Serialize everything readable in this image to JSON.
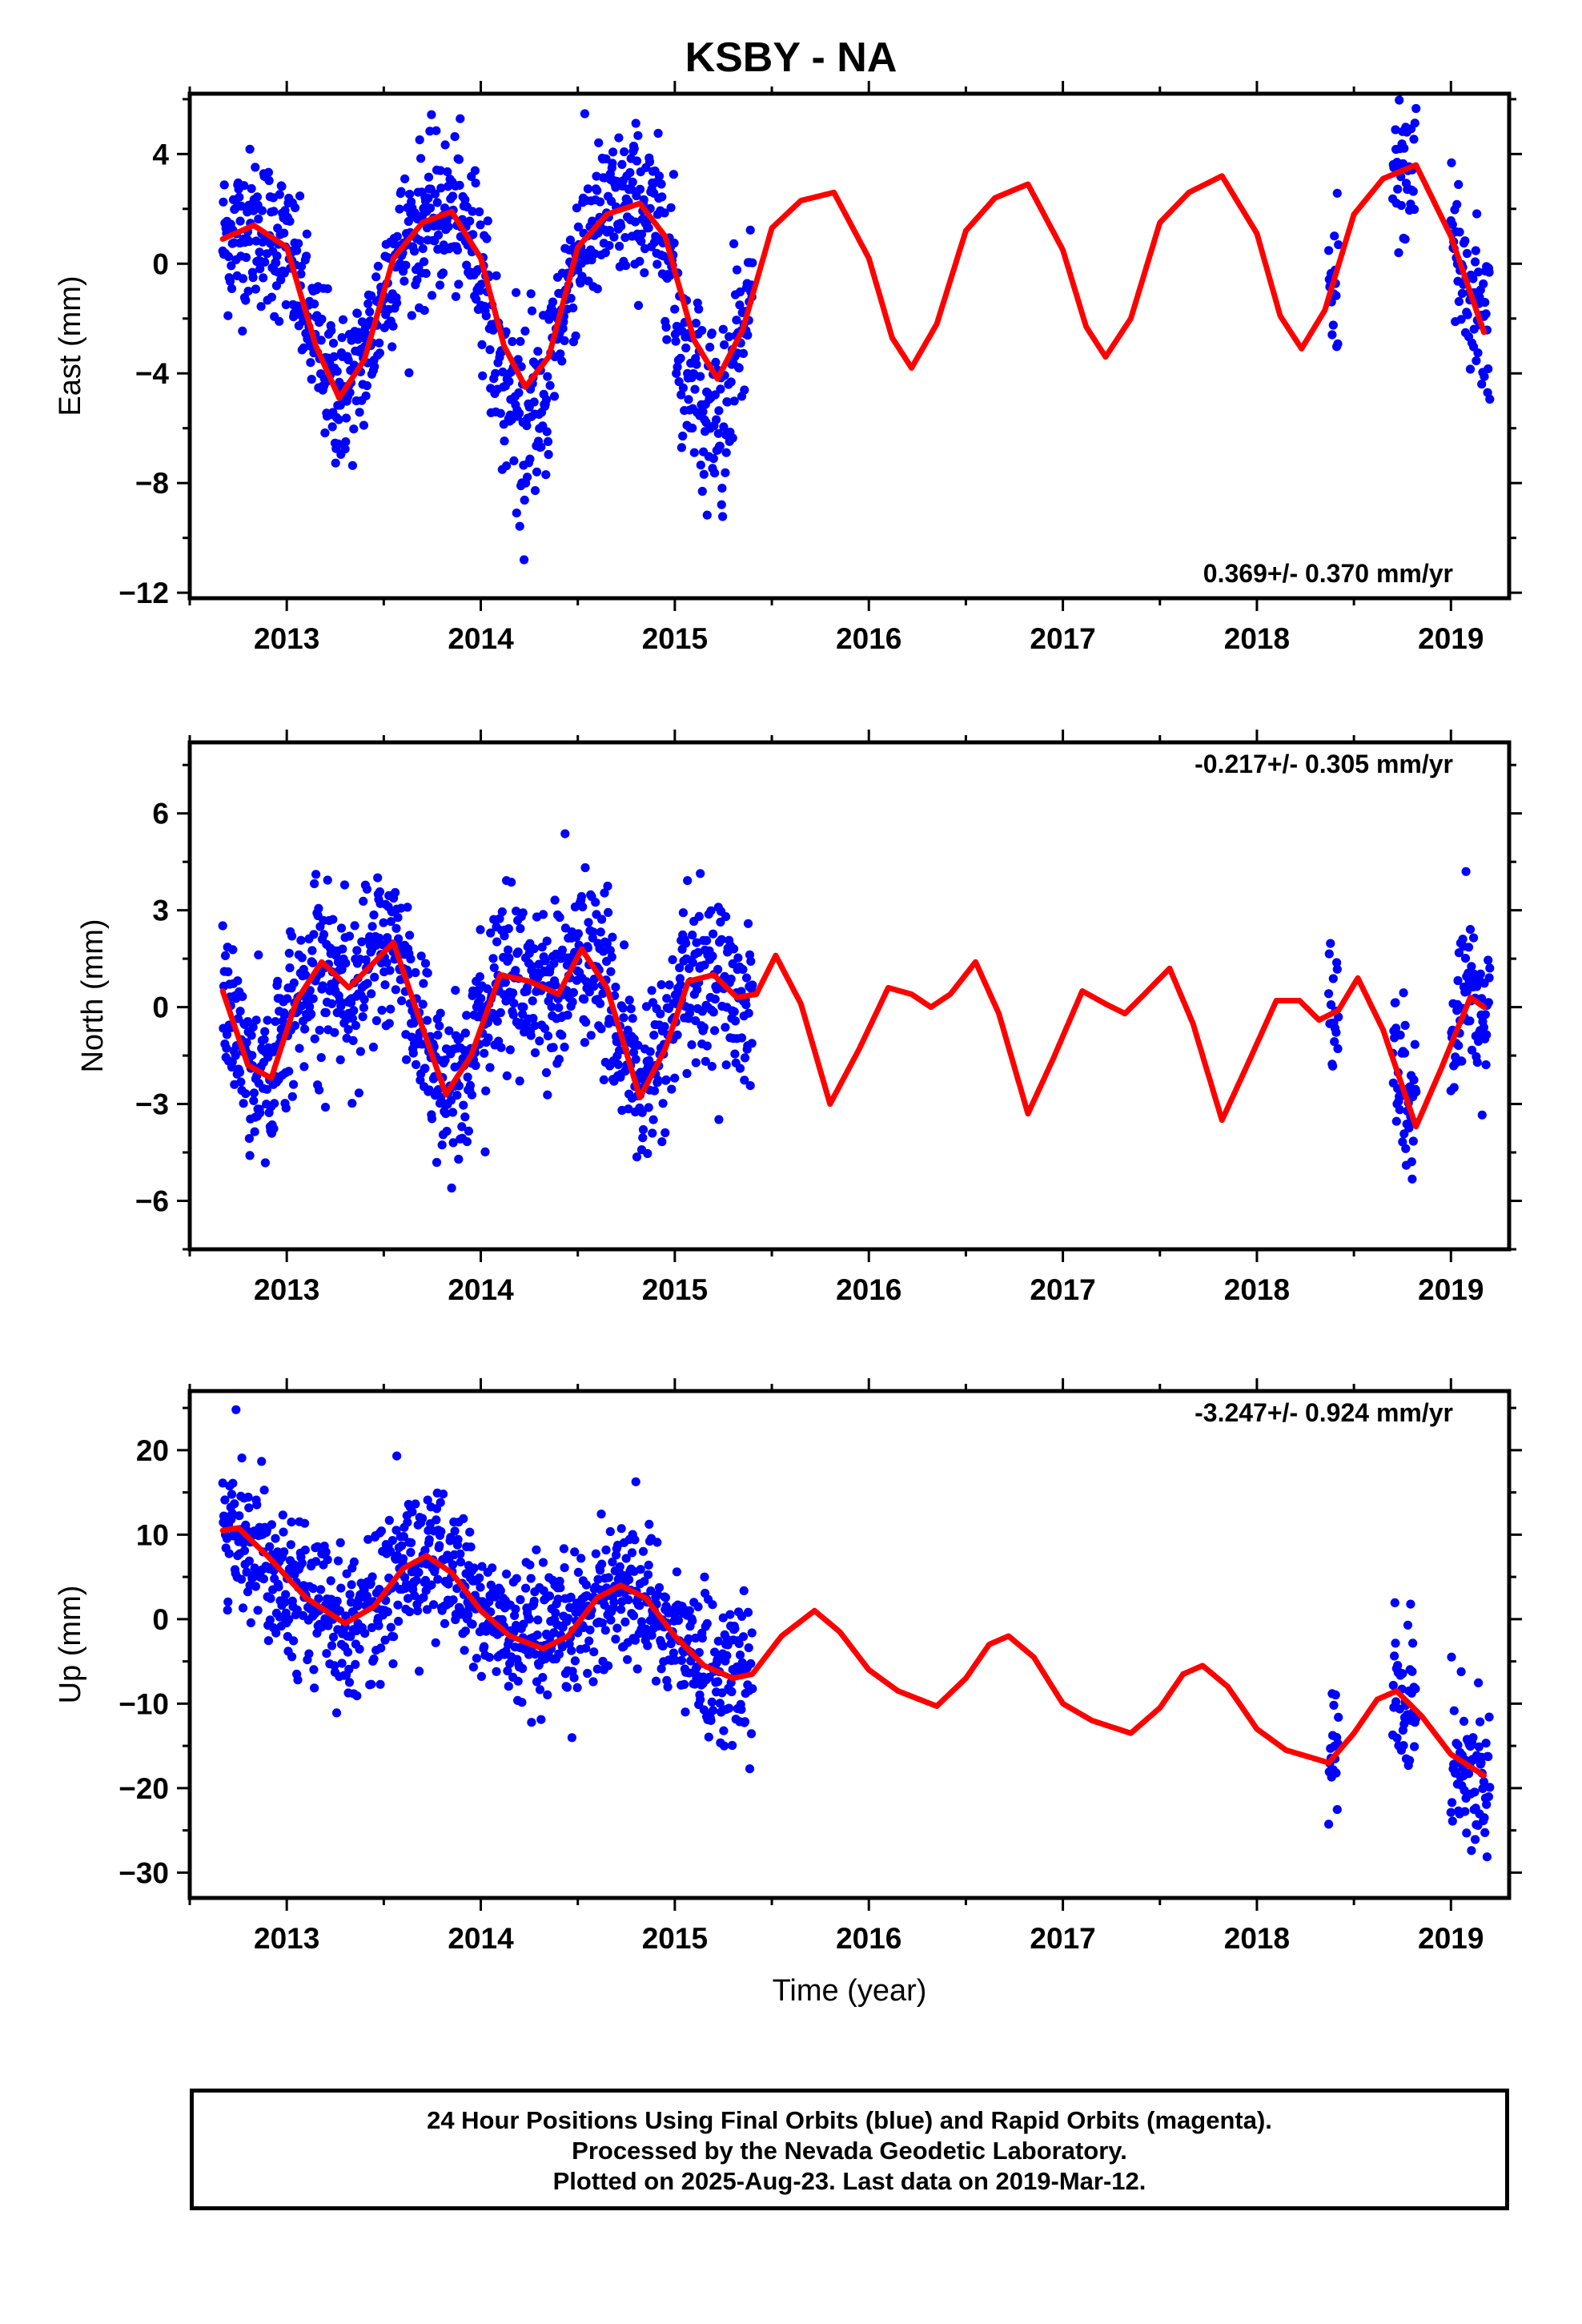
{
  "title": "KSBY - NA",
  "colors": {
    "observations": "#0000ff",
    "model": "#ff0000",
    "frame": "#000000"
  },
  "footer": {
    "line1": "24 Hour Positions Using Final Orbits (blue) and Rapid Orbits (magenta).",
    "line2": "Processed by the Nevada Geodetic Laboratory.",
    "line3": "Plotted on 2025-Aug-23. Last data on 2019-Mar-12."
  },
  "chart_data": [
    {
      "type": "scatter",
      "title": "KSBY - NA",
      "ylabel": "East (mm)",
      "xlabel": "",
      "xlim": [
        2012.5,
        2019.3
      ],
      "ylim": [
        -12.2,
        6.2
      ],
      "xticks": [
        2013,
        2014,
        2015,
        2016,
        2017,
        2018,
        2019
      ],
      "yticks": [
        -12,
        -8,
        -4,
        0,
        4
      ],
      "rate_text": "0.369+/- 0.370 mm/yr",
      "data_segments": [
        [
          2012.67,
          2015.4
        ],
        [
          2018.37,
          2018.42
        ],
        [
          2018.7,
          2018.82
        ],
        [
          2019.0,
          2019.2
        ]
      ],
      "model": {
        "x": [
          2012.67,
          2012.83,
          2013.0,
          2013.15,
          2013.27,
          2013.4,
          2013.55,
          2013.7,
          2013.85,
          2014.0,
          2014.12,
          2014.23,
          2014.35,
          2014.5,
          2014.65,
          2014.82,
          2014.95,
          2015.1,
          2015.22,
          2015.35,
          2015.5,
          2015.65,
          2015.82,
          2016.0,
          2016.12,
          2016.22,
          2016.35,
          2016.5,
          2016.65,
          2016.82,
          2017.0,
          2017.12,
          2017.22,
          2017.35,
          2017.5,
          2017.65,
          2017.82,
          2018.0,
          2018.12,
          2018.23,
          2018.35,
          2018.5,
          2018.65,
          2018.82,
          2019.0,
          2019.17
        ],
        "y": [
          0.9,
          1.4,
          0.6,
          -3.0,
          -4.9,
          -3.5,
          0.2,
          1.5,
          1.9,
          0.2,
          -3.0,
          -4.5,
          -3.4,
          0.6,
          1.8,
          2.2,
          1.0,
          -2.8,
          -4.2,
          -2.4,
          1.3,
          2.3,
          2.6,
          0.2,
          -2.7,
          -3.8,
          -2.2,
          1.2,
          2.4,
          2.9,
          0.5,
          -2.3,
          -3.4,
          -2.0,
          1.5,
          2.6,
          3.2,
          1.1,
          -1.9,
          -3.1,
          -1.7,
          1.8,
          3.1,
          3.6,
          1.0,
          -2.5
        ]
      }
    },
    {
      "type": "scatter",
      "ylabel": "North (mm)",
      "xlabel": "",
      "xlim": [
        2012.5,
        2019.3
      ],
      "ylim": [
        -7.5,
        8.2
      ],
      "xticks": [
        2013,
        2014,
        2015,
        2016,
        2017,
        2018,
        2019
      ],
      "yticks": [
        -6,
        -3,
        0,
        3,
        6
      ],
      "rate_text": "-0.217+/- 0.305 mm/yr",
      "data_segments": [
        [
          2012.67,
          2015.4
        ],
        [
          2018.37,
          2018.42
        ],
        [
          2018.7,
          2018.82
        ],
        [
          2019.0,
          2019.2
        ]
      ],
      "model": {
        "x": [
          2012.67,
          2012.8,
          2012.92,
          2013.05,
          2013.18,
          2013.32,
          2013.42,
          2013.55,
          2013.68,
          2013.82,
          2013.95,
          2014.1,
          2014.25,
          2014.4,
          2014.52,
          2014.65,
          2014.82,
          2014.95,
          2015.07,
          2015.2,
          2015.32,
          2015.42,
          2015.52,
          2015.65,
          2015.8,
          2015.95,
          2016.1,
          2016.22,
          2016.32,
          2016.42,
          2016.55,
          2016.67,
          2016.82,
          2016.95,
          2017.1,
          2017.22,
          2017.32,
          2017.42,
          2017.55,
          2017.67,
          2017.82,
          2017.95,
          2018.1,
          2018.22,
          2018.32,
          2018.42,
          2018.52,
          2018.65,
          2018.82,
          2018.95,
          2019.1,
          2019.17
        ],
        "y": [
          0.5,
          -1.8,
          -2.2,
          0.2,
          1.4,
          0.6,
          1.2,
          2.0,
          -0.3,
          -2.7,
          -1.5,
          1.0,
          0.8,
          0.4,
          1.8,
          0.6,
          -2.8,
          -1.3,
          0.8,
          1.0,
          0.3,
          0.4,
          1.6,
          0.1,
          -3.0,
          -1.3,
          0.6,
          0.4,
          0.0,
          0.4,
          1.4,
          -0.2,
          -3.3,
          -1.6,
          0.5,
          0.1,
          -0.2,
          0.4,
          1.2,
          -0.5,
          -3.5,
          -1.8,
          0.2,
          0.2,
          -0.4,
          -0.1,
          0.9,
          -0.7,
          -3.7,
          -1.9,
          0.3,
          0.0
        ]
      }
    },
    {
      "type": "scatter",
      "ylabel": "Up (mm)",
      "xlabel": "Time (year)",
      "xlim": [
        2012.5,
        2019.3
      ],
      "ylim": [
        -33,
        27
      ],
      "xticks": [
        2013,
        2014,
        2015,
        2016,
        2017,
        2018,
        2019
      ],
      "yticks": [
        -30,
        -20,
        -10,
        0,
        10,
        20
      ],
      "rate_text": "-3.247+/- 0.924 mm/yr",
      "data_segments": [
        [
          2012.67,
          2015.4
        ],
        [
          2018.37,
          2018.42
        ],
        [
          2018.7,
          2018.82
        ],
        [
          2019.0,
          2019.2
        ]
      ],
      "model": {
        "x": [
          2012.67,
          2012.75,
          2012.9,
          2013.1,
          2013.3,
          2013.45,
          2013.6,
          2013.72,
          2013.85,
          2014.0,
          2014.15,
          2014.32,
          2014.45,
          2014.6,
          2014.72,
          2014.85,
          2015.0,
          2015.15,
          2015.3,
          2015.4,
          2015.55,
          2015.72,
          2015.85,
          2016.0,
          2016.15,
          2016.35,
          2016.5,
          2016.62,
          2016.72,
          2016.85,
          2017.0,
          2017.15,
          2017.35,
          2017.5,
          2017.62,
          2017.72,
          2017.85,
          2018.0,
          2018.15,
          2018.37,
          2018.5,
          2018.62,
          2018.72,
          2018.85,
          2019.0,
          2019.17
        ],
        "y": [
          10.5,
          10.8,
          7.5,
          2.5,
          -0.5,
          1.5,
          6.0,
          7.5,
          5.5,
          1.0,
          -2.0,
          -3.5,
          -2.0,
          2.5,
          4.0,
          2.5,
          -2.0,
          -5.5,
          -7.0,
          -6.5,
          -2.0,
          1.0,
          -1.5,
          -6.0,
          -8.5,
          -10.3,
          -7.0,
          -3.0,
          -2.0,
          -4.5,
          -10.0,
          -12.0,
          -13.5,
          -10.5,
          -6.5,
          -5.5,
          -8.0,
          -13.0,
          -15.5,
          -17.0,
          -13.5,
          -9.5,
          -8.5,
          -11.5,
          -16.0,
          -18.5
        ]
      }
    }
  ]
}
